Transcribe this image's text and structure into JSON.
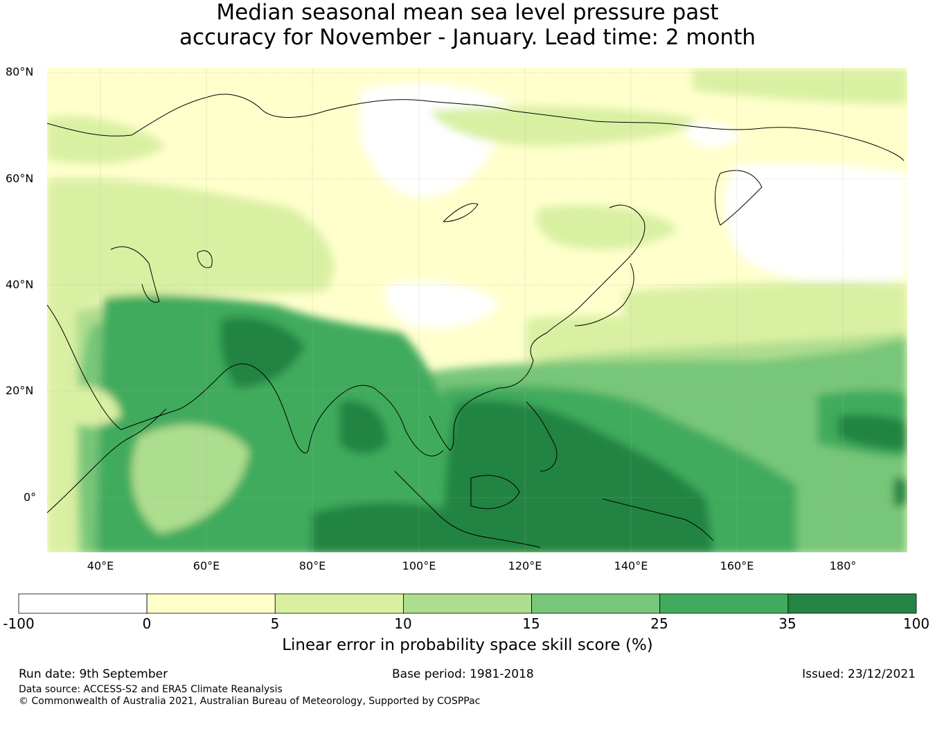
{
  "title_line1": "Median seasonal mean sea level pressure past",
  "title_line2": "accuracy for November - January. Lead time: 2 month",
  "lat_labels": [
    "80°N",
    "60°N",
    "40°N",
    "20°N",
    "0°"
  ],
  "lon_labels": [
    "40°E",
    "60°E",
    "80°E",
    "100°E",
    "120°E",
    "140°E",
    "160°E",
    "180°"
  ],
  "colorbar": {
    "ticks": [
      "-100",
      "0",
      "5",
      "10",
      "15",
      "25",
      "35",
      "100"
    ],
    "colors": [
      "#ffffff",
      "#ffffcc",
      "#d9f0a3",
      "#addd8e",
      "#78c679",
      "#41ab5d",
      "#238443"
    ],
    "label": "Linear error in probability space skill score (%)"
  },
  "footer": {
    "run_date": "Run date: 9th September",
    "base_period": "Base period: 1981-2018",
    "issued": "Issued: 23/12/2021",
    "data_source": "Data source: ACCESS-S2 and ERA5 Climate Reanalysis",
    "copyright": "© Commonwealth of Australia 2021, Australian Bureau of Meteorology, Supported by COSPPac"
  }
}
